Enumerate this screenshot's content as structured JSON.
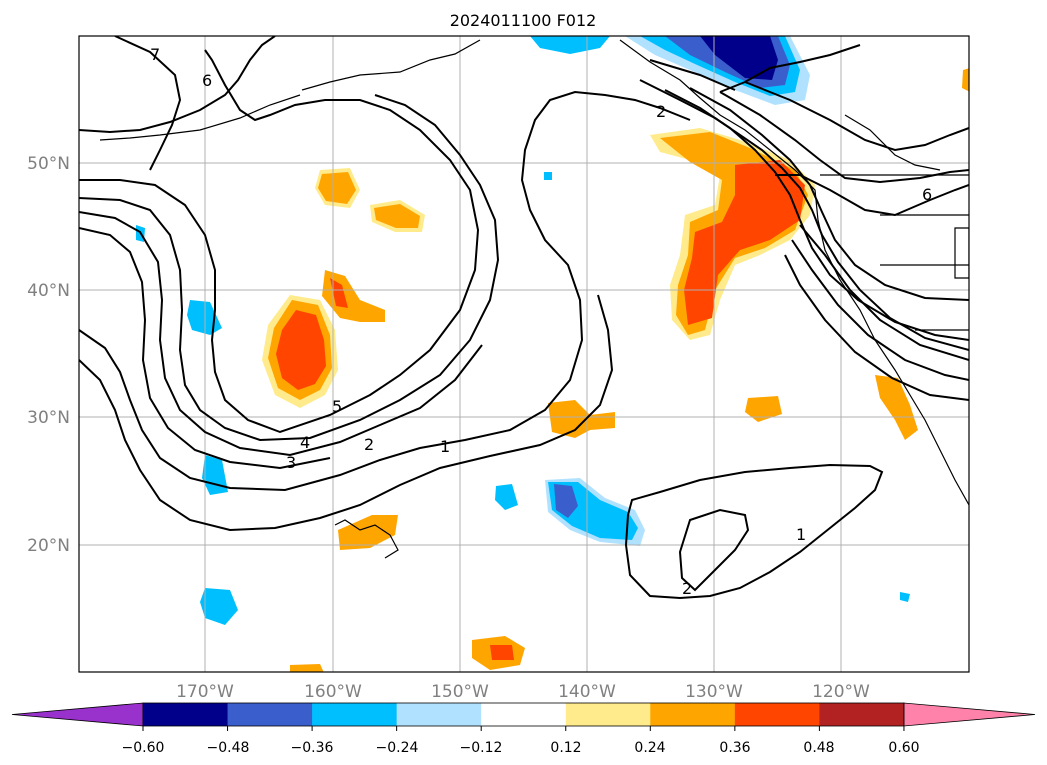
{
  "title": "2024011100 F012",
  "lon_labels": [
    "170°W",
    "160°W",
    "150°W",
    "140°W",
    "130°W",
    "120°W"
  ],
  "lat_labels": [
    "50°N",
    "40°N",
    "30°N",
    "20°N"
  ],
  "contour_labels": [
    "7",
    "6",
    "2",
    "6",
    "5",
    "4",
    "3",
    "2",
    "1",
    "1",
    "2"
  ],
  "colorbar": {
    "ticks": [
      "−0.60",
      "−0.48",
      "−0.36",
      "−0.24",
      "−0.12",
      "0.12",
      "0.24",
      "0.36",
      "0.48",
      "0.60"
    ],
    "colors": [
      "#9932cc",
      "#00008b",
      "#3a5fcd",
      "#00bfff",
      "#b0e2ff",
      "#ffffff",
      "#ffeb8b",
      "#ffa500",
      "#ff4500",
      "#b22222",
      "#ff82ab"
    ]
  },
  "colors": {
    "axis_label": "#808080",
    "grid": "#b0b0b0",
    "contour": "#000000"
  }
}
